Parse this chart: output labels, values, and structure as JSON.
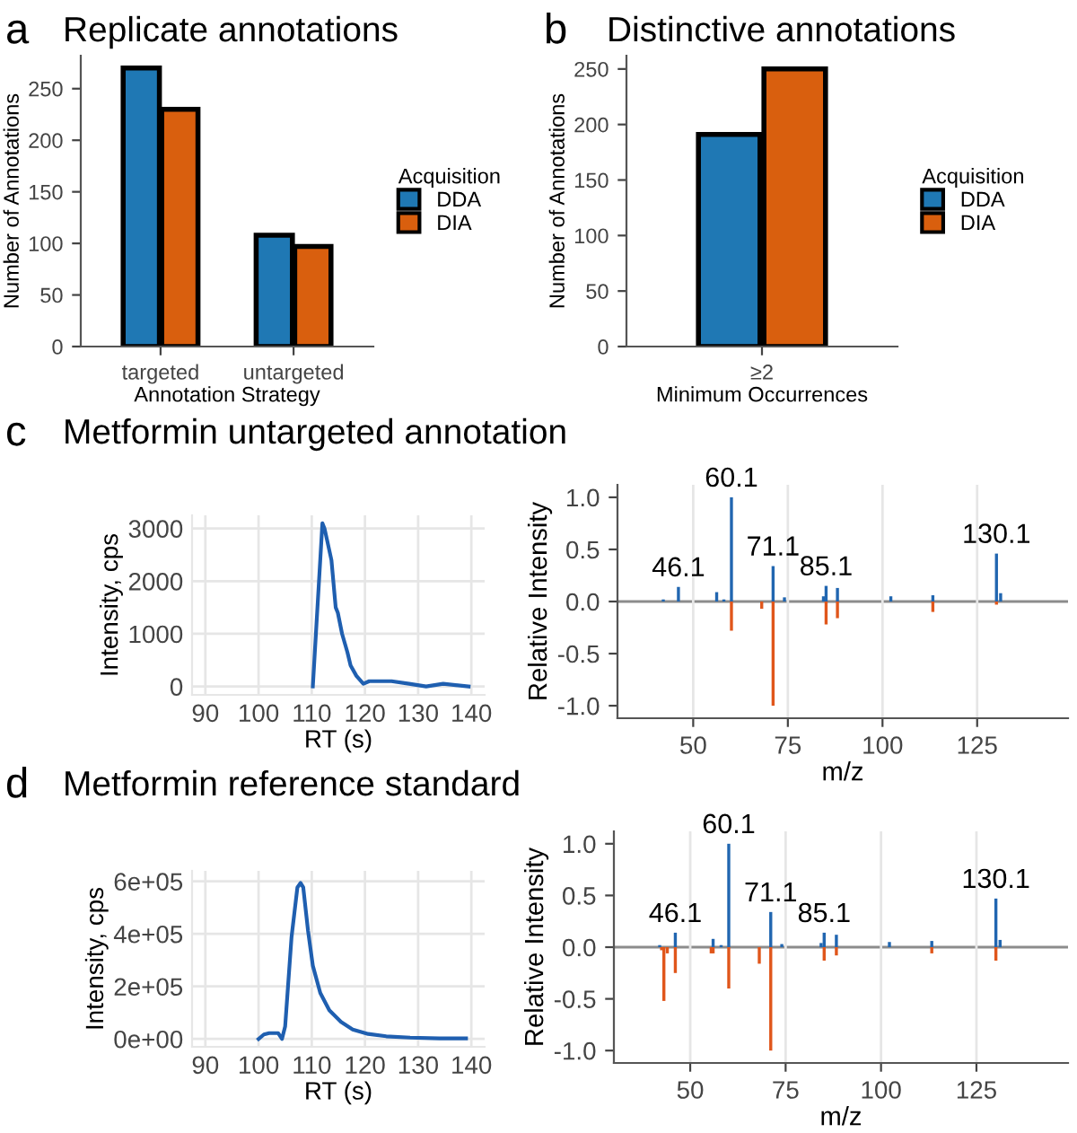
{
  "chart_data": [
    {
      "type": "bar",
      "title": "Replicate annotations",
      "annotations": [
        "a"
      ],
      "xlabel": "Annotation Strategy",
      "ylabel": "Number of Annotations",
      "legend_title": "Acquisition",
      "legend": "right",
      "categories": [
        "targeted",
        "untargeted"
      ],
      "ylim": [
        0,
        282
      ],
      "yticks": [
        0,
        50,
        100,
        150,
        200,
        250
      ],
      "series": [
        {
          "name": "DDA",
          "color": "#1f78b4",
          "values": [
            270,
            108
          ]
        },
        {
          "name": "DIA",
          "color": "#d95f0e",
          "values": [
            230,
            97
          ]
        }
      ]
    },
    {
      "type": "bar",
      "title": "Distinctive annotations",
      "annotations": [
        "b"
      ],
      "xlabel": "Minimum Occurrences",
      "ylabel": "Number of Annotations",
      "legend_title": "Acquisition",
      "legend": "right",
      "categories": [
        "≥2"
      ],
      "ylim": [
        0,
        262
      ],
      "yticks": [
        0,
        50,
        100,
        150,
        200,
        250
      ],
      "series": [
        {
          "name": "DDA",
          "color": "#1f78b4",
          "values": [
            191
          ]
        },
        {
          "name": "DIA",
          "color": "#d95f0e",
          "values": [
            250
          ]
        }
      ]
    },
    {
      "type": "line",
      "title": "Metformin untargeted annotation",
      "annotations": [
        "c"
      ],
      "xlabel": "RT (s)",
      "ylabel": "Intensity, cps",
      "grid": true,
      "xlim": [
        87.5,
        142.5
      ],
      "ylim": [
        -160,
        3250
      ],
      "xticks": [
        90,
        100,
        110,
        120,
        130,
        140
      ],
      "yticks": [
        0,
        1000,
        2000,
        3000
      ],
      "series": [
        {
          "color": "#1f5fb0",
          "x": [
            110.2,
            112.0,
            112.4,
            113.7,
            114.5,
            114.9,
            115.7,
            116.7,
            117.3,
            118.4,
            119.7,
            120.8,
            122.4,
            125,
            128.3,
            131.5,
            134.7,
            139.5
          ],
          "values": [
            0,
            3100,
            3000,
            2400,
            1500,
            1400,
            1000,
            650,
            400,
            200,
            50,
            100,
            100,
            100,
            50,
            0,
            50,
            0
          ]
        }
      ]
    },
    {
      "type": "bar",
      "xlabel": "m/z",
      "ylabel": "Relative Intensity",
      "grid": "x",
      "xlim": [
        30,
        149
      ],
      "ylim": [
        -1.12,
        1.12
      ],
      "xticks": [
        50,
        75,
        100,
        125
      ],
      "yticks": [
        {
          "value": -1,
          "label": "-1.0"
        },
        {
          "value": -0.5,
          "label": "-0.5"
        },
        {
          "value": 0,
          "label": "0.0"
        },
        {
          "value": 0.5,
          "label": "0.5"
        },
        {
          "value": 1,
          "label": "1.0"
        }
      ],
      "ref_lines": [
        {
          "axis": "y",
          "value": 0,
          "color": "#8c8c8c"
        }
      ],
      "annotations": [
        {
          "text": "46.1",
          "x": 46.1,
          "y": 0.14
        },
        {
          "text": "60.1",
          "x": 60.1,
          "y": 1.0
        },
        {
          "text": "71.1",
          "x": 71.1,
          "y": 0.34
        },
        {
          "text": "85.1",
          "x": 85.1,
          "y": 0.15
        },
        {
          "text": "130.1",
          "x": 130.1,
          "y": 0.46
        }
      ],
      "series": [
        {
          "color": "#2166b0",
          "x": [
            42.1,
            46.1,
            56.2,
            58.1,
            60.1,
            71.1,
            74.1,
            84.4,
            85.1,
            88.1,
            102.2,
            113.3,
            130.1,
            131.2
          ],
          "values": [
            0.02,
            0.14,
            0.09,
            0.02,
            1.0,
            0.34,
            0.04,
            0.05,
            0.15,
            0.13,
            0.05,
            0.06,
            0.46,
            0.08
          ]
        },
        {
          "color": "#e0561b",
          "x": [
            60.1,
            68.1,
            71.1,
            85.1,
            88.1,
            113.3,
            130.1
          ],
          "values": [
            -0.28,
            -0.07,
            -1.0,
            -0.22,
            -0.16,
            -0.1,
            -0.03
          ]
        }
      ]
    },
    {
      "type": "line",
      "title": "Metformin reference standard",
      "annotations": [
        "d"
      ],
      "xlabel": "RT (s)",
      "ylabel": "Intensity, cps",
      "grid": true,
      "xlim": [
        87.5,
        142.5
      ],
      "ylim": [
        -30000,
        640000
      ],
      "xticks": [
        90,
        100,
        110,
        120,
        130,
        140
      ],
      "yticks": [
        {
          "value": 0,
          "label": "0e+00"
        },
        {
          "value": 200000,
          "label": "2e+05"
        },
        {
          "value": 400000,
          "label": "4e+05"
        },
        {
          "value": 600000,
          "label": "6e+05"
        }
      ],
      "series": [
        {
          "color": "#1f5fb0",
          "x": [
            100,
            101,
            102,
            103.7,
            104.4,
            105,
            106.2,
            107.3,
            107.9,
            108.4,
            109.3,
            110.2,
            111.6,
            113.3,
            115.5,
            117.7,
            120.6,
            124,
            128.5,
            134,
            139
          ],
          "values": [
            0,
            17000,
            22000,
            22000,
            0,
            48000,
            388000,
            577000,
            594000,
            577000,
            412000,
            279000,
            175000,
            109000,
            65000,
            36000,
            19000,
            10000,
            5000,
            2000,
            2000
          ]
        }
      ]
    },
    {
      "type": "bar",
      "xlabel": "m/z",
      "ylabel": "Relative Intensity",
      "grid": "x",
      "xlim": [
        30,
        149
      ],
      "ylim": [
        -1.12,
        1.12
      ],
      "xticks": [
        50,
        75,
        100,
        125
      ],
      "yticks": [
        {
          "value": -1,
          "label": "-1.0"
        },
        {
          "value": -0.5,
          "label": "-0.5"
        },
        {
          "value": 0,
          "label": "0.0"
        },
        {
          "value": 0.5,
          "label": "0.5"
        },
        {
          "value": 1,
          "label": "1.0"
        }
      ],
      "ref_lines": [
        {
          "axis": "y",
          "value": 0,
          "color": "#8c8c8c"
        }
      ],
      "annotations": [
        {
          "text": "46.1",
          "x": 46.1,
          "y": 0.14
        },
        {
          "text": "60.1",
          "x": 60.1,
          "y": 1.0
        },
        {
          "text": "71.1",
          "x": 71.1,
          "y": 0.34
        },
        {
          "text": "85.1",
          "x": 85.1,
          "y": 0.14
        },
        {
          "text": "130.1",
          "x": 130.1,
          "y": 0.47
        }
      ],
      "series": [
        {
          "color": "#2166b0",
          "x": [
            42.0,
            46.1,
            56.0,
            58.1,
            60.1,
            71.1,
            74.0,
            84.3,
            85.1,
            88.3,
            102.2,
            113.3,
            130.1,
            131.2
          ],
          "values": [
            0.02,
            0.14,
            0.08,
            0.02,
            1.0,
            0.34,
            0.03,
            0.04,
            0.14,
            0.12,
            0.05,
            0.06,
            0.47,
            0.07
          ]
        },
        {
          "color": "#e0561b",
          "x": [
            42.5,
            43.1,
            44.0,
            46.1,
            55.5,
            56.0,
            60.1,
            68.1,
            71.1,
            85.1,
            88.3,
            113.3,
            130.1
          ],
          "values": [
            -0.03,
            -0.52,
            -0.06,
            -0.25,
            -0.06,
            -0.06,
            -0.4,
            -0.16,
            -1.0,
            -0.13,
            -0.08,
            -0.06,
            -0.13
          ]
        }
      ]
    }
  ]
}
